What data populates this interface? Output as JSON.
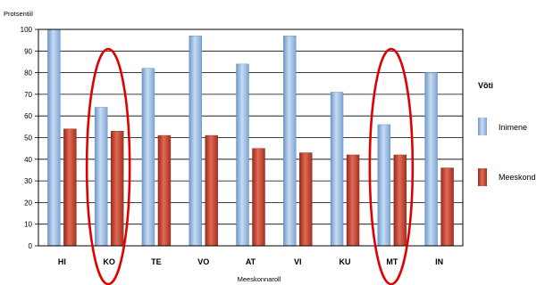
{
  "chart_data": {
    "type": "bar",
    "ylabel": "Protsentiil",
    "xlabel": "Meeskonnaroll",
    "ylim": [
      0,
      100
    ],
    "yticks": [
      0,
      10,
      20,
      30,
      40,
      50,
      60,
      70,
      80,
      90,
      100
    ],
    "grid": true,
    "categories": [
      "HI",
      "KO",
      "TE",
      "VO",
      "AT",
      "VI",
      "KU",
      "MT",
      "IN"
    ],
    "series": [
      {
        "name": "Inimene",
        "color": "#8fb4e0",
        "values": [
          100,
          64,
          82,
          97,
          84,
          97,
          71,
          56,
          80
        ]
      },
      {
        "name": "Meeskond",
        "color": "#c0392b",
        "values": [
          54,
          53,
          51,
          51,
          45,
          43,
          42,
          42,
          36
        ]
      }
    ],
    "legend": {
      "title": "Võti",
      "position": "right"
    },
    "annotations": [
      {
        "type": "ellipse",
        "target_category": "KO",
        "color": "#e00000"
      },
      {
        "type": "ellipse",
        "target_category": "MT",
        "color": "#e00000"
      }
    ]
  }
}
